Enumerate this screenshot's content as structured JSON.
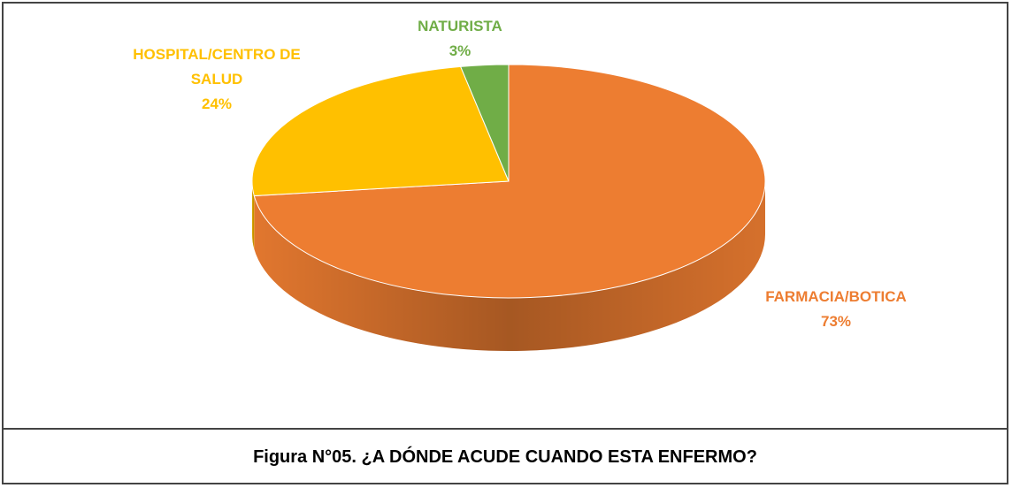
{
  "chart_data": {
    "type": "pie",
    "title": "Figura N°05. ¿A DÓNDE ACUDE CUANDO ESTA ENFERMO?",
    "categories": [
      "FARMACIA/BOTICA",
      "HOSPITAL/CENTRO DE SALUD",
      "NATURISTA"
    ],
    "values": [
      73,
      24,
      3
    ],
    "value_labels": [
      "73%",
      "24%",
      "3%"
    ],
    "colors": [
      "#ED7D31",
      "#FFC000",
      "#70AD47"
    ]
  }
}
